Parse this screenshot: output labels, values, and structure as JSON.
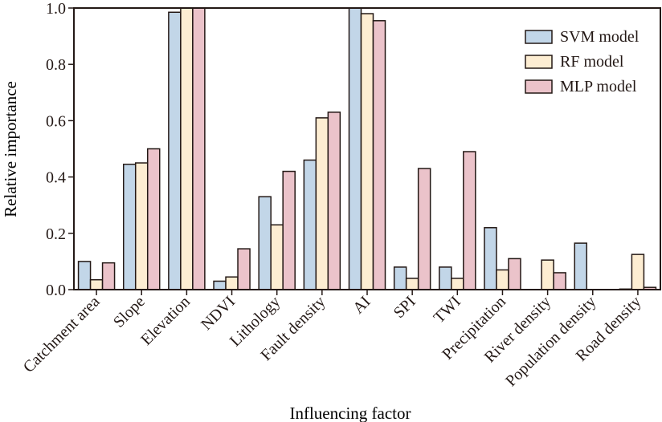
{
  "chart_data": {
    "type": "bar",
    "title": "",
    "xlabel": "Influencing factor",
    "ylabel": "Relative importance",
    "ylim": [
      0,
      1.0
    ],
    "yticks": [
      "0.0",
      "0.2",
      "0.4",
      "0.6",
      "0.8",
      "1.0"
    ],
    "grid": false,
    "legend_position": "top-right",
    "categories": [
      "Catchment area",
      "Slope",
      "Elevation",
      "NDVI",
      "Lithology",
      "Fault density",
      "AI",
      "SPI",
      "TWI",
      "Precipitation",
      "River density",
      "Population density",
      "Road density"
    ],
    "series": [
      {
        "name": "SVM model",
        "color": "#c2d6e8",
        "values": [
          0.1,
          0.445,
          0.985,
          0.03,
          0.33,
          0.46,
          1.0,
          0.08,
          0.08,
          0.22,
          0.0,
          0.165,
          0.002
        ]
      },
      {
        "name": "RF model",
        "color": "#fdedd2",
        "values": [
          0.035,
          0.45,
          1.0,
          0.045,
          0.23,
          0.61,
          0.98,
          0.04,
          0.04,
          0.07,
          0.105,
          0.0,
          0.125
        ]
      },
      {
        "name": "MLP model",
        "color": "#ebc3ca",
        "values": [
          0.095,
          0.5,
          1.0,
          0.145,
          0.42,
          0.63,
          0.955,
          0.43,
          0.49,
          0.11,
          0.06,
          0.0,
          0.008
        ]
      }
    ]
  }
}
